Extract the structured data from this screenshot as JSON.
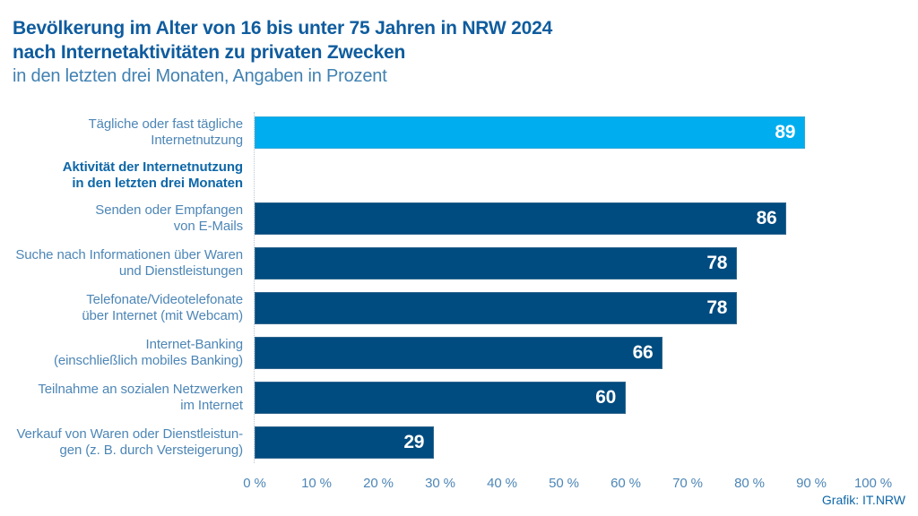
{
  "header": {
    "title_line1": "Bevölkerung im Alter von 16 bis unter 75 Jahren in NRW 2024",
    "title_line2": "nach Internetaktivitäten zu privaten Zwecken",
    "subtitle": "in den letzten drei Monaten, Angaben in Prozent"
  },
  "footer": {
    "source": "Grafik: IT.NRW"
  },
  "chart_data": {
    "type": "bar",
    "orientation": "horizontal",
    "title": "Bevölkerung im Alter von 16 bis unter 75 Jahren in NRW 2024 nach Internetaktivitäten zu privaten Zwecken",
    "subtitle": "in den letzten drei Monaten, Angaben in Prozent",
    "xlabel": "",
    "ylabel": "",
    "xlim": [
      0,
      100
    ],
    "grid": "dotted vertical line at 0% only",
    "legend": "none",
    "x_ticks": [
      "0 %",
      "10 %",
      "20 %",
      "30 %",
      "40 %",
      "50 %",
      "60 %",
      "70 %",
      "80 %",
      "90 %",
      "100 %"
    ],
    "group_heading": "Aktivität der Internetnutzung\nin den letzten drei Monaten",
    "rows": [
      {
        "label": "Tägliche oder fast tägliche\nInternetnutzung",
        "value": 89,
        "highlight": true
      },
      {
        "label": "Senden oder Empfangen\nvon E-Mails",
        "value": 86,
        "highlight": false
      },
      {
        "label": "Suche nach Informationen über Waren\nund Dienstleistungen",
        "value": 78,
        "highlight": false
      },
      {
        "label": "Telefonate/Videotelefonate\nüber Internet (mit Webcam)",
        "value": 78,
        "highlight": false
      },
      {
        "label": "Internet-Banking\n(einschließlich mobiles Banking)",
        "value": 66,
        "highlight": false
      },
      {
        "label": "Teilnahme an sozialen Netzwerken\nim Internet",
        "value": 60,
        "highlight": false
      },
      {
        "label": "Verkauf von Waren oder Dienstleistun-\ngen (z. B. durch Versteigerung)",
        "value": 29,
        "highlight": false
      }
    ],
    "colors": {
      "highlight_bar": "#00AEEF",
      "bar": "#004B7F",
      "value_label": "#FFFFFF",
      "title": "#0F5C9E",
      "subtitle": "#4181B1",
      "category_label": "#4D86B6",
      "group_heading": "#0E67A8",
      "axis_label": "#4D86B6",
      "source": "#0E67A8"
    }
  }
}
